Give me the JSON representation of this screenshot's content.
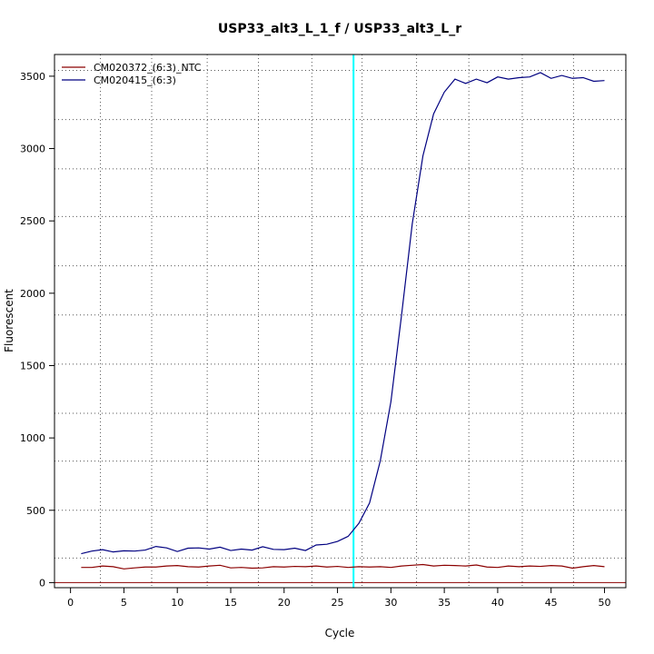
{
  "chart_data": {
    "type": "line",
    "title": "USP33_alt3_L_1_f / USP33_alt3_L_r",
    "xlabel": "Cycle",
    "ylabel": "Fluorescent",
    "xlim": [
      -1.5,
      52
    ],
    "ylim": [
      -35,
      3650
    ],
    "x_ticks": [
      0,
      5,
      10,
      15,
      20,
      25,
      30,
      35,
      40,
      45,
      50
    ],
    "y_ticks": [
      0,
      500,
      1000,
      1500,
      2000,
      2500,
      3000,
      3500
    ],
    "x_gridlines": [
      2.8,
      7.6,
      12.8,
      17.6,
      22.6,
      27.3,
      32.4,
      37.3,
      42.3,
      47.1
    ],
    "y_gridlines": [
      170,
      500,
      840,
      1170,
      1510,
      1850,
      2190,
      2530,
      2860,
      3200,
      3540
    ],
    "grid": true,
    "legend_position": "top-left",
    "threshold": {
      "x": 26.5,
      "color": "#00ffff"
    },
    "baseline": {
      "y": 0,
      "color": "#8b0000"
    },
    "x": [
      1,
      2,
      3,
      4,
      5,
      6,
      7,
      8,
      9,
      10,
      11,
      12,
      13,
      14,
      15,
      16,
      17,
      18,
      19,
      20,
      21,
      22,
      23,
      24,
      25,
      26,
      27,
      28,
      29,
      30,
      31,
      32,
      33,
      34,
      35,
      36,
      37,
      38,
      39,
      40,
      41,
      42,
      43,
      44,
      45,
      46,
      47,
      48,
      49,
      50
    ],
    "series": [
      {
        "name": "CM020372_(6:3)_NTC",
        "color": "#8b0000",
        "values": [
          105,
          105,
          115,
          110,
          95,
          102,
          108,
          108,
          115,
          118,
          110,
          108,
          115,
          120,
          102,
          105,
          100,
          102,
          110,
          108,
          112,
          110,
          115,
          108,
          112,
          105,
          110,
          108,
          110,
          105,
          115,
          120,
          125,
          115,
          120,
          118,
          115,
          122,
          108,
          105,
          115,
          110,
          115,
          112,
          118,
          115,
          100,
          110,
          118,
          110
        ]
      },
      {
        "name": "CM020415_(6:3)",
        "color": "#000080",
        "values": [
          200,
          218,
          228,
          212,
          220,
          218,
          225,
          250,
          240,
          215,
          238,
          240,
          232,
          245,
          222,
          232,
          225,
          248,
          230,
          228,
          238,
          222,
          260,
          265,
          285,
          320,
          410,
          550,
          840,
          1250,
          1850,
          2480,
          2950,
          3240,
          3390,
          3480,
          3450,
          3480,
          3455,
          3495,
          3480,
          3490,
          3495,
          3525,
          3485,
          3505,
          3485,
          3490,
          3465,
          3470
        ]
      }
    ]
  }
}
